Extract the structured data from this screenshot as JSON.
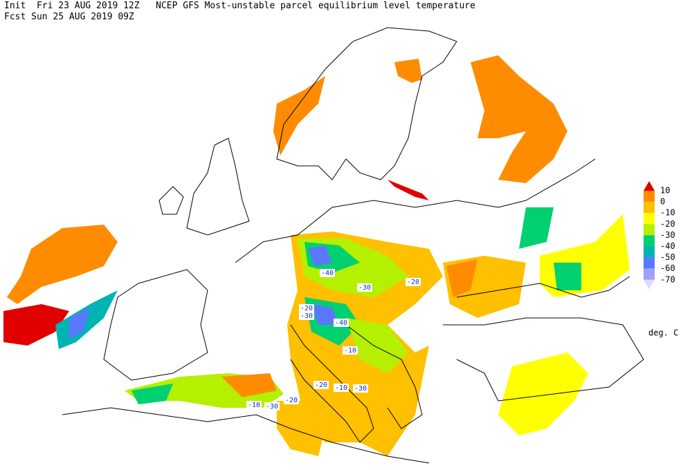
{
  "header": {
    "line1": "Init  Fri 23 AUG 2019 12Z   NCEP GFS Most-unstable parcel equilibrium level temperature",
    "line2": "Fcst Sun 25 AUG 2019 09Z"
  },
  "legend": {
    "levels": [
      10,
      0,
      -10,
      -20,
      -30,
      -40,
      -50,
      -60,
      -70
    ],
    "colors": [
      "#e00000",
      "#ff8c00",
      "#ffc000",
      "#ffff00",
      "#b4f000",
      "#00d070",
      "#00b4b4",
      "#5a78ff",
      "#a0a0ff",
      "#dcdcff"
    ],
    "unit": "deg. C"
  },
  "contour_labels": [
    "-40",
    "-30",
    "-20",
    "-20",
    "-30",
    "-40",
    "-10",
    "-20",
    "-10",
    "-30",
    "-10",
    "-30",
    "-20"
  ]
}
